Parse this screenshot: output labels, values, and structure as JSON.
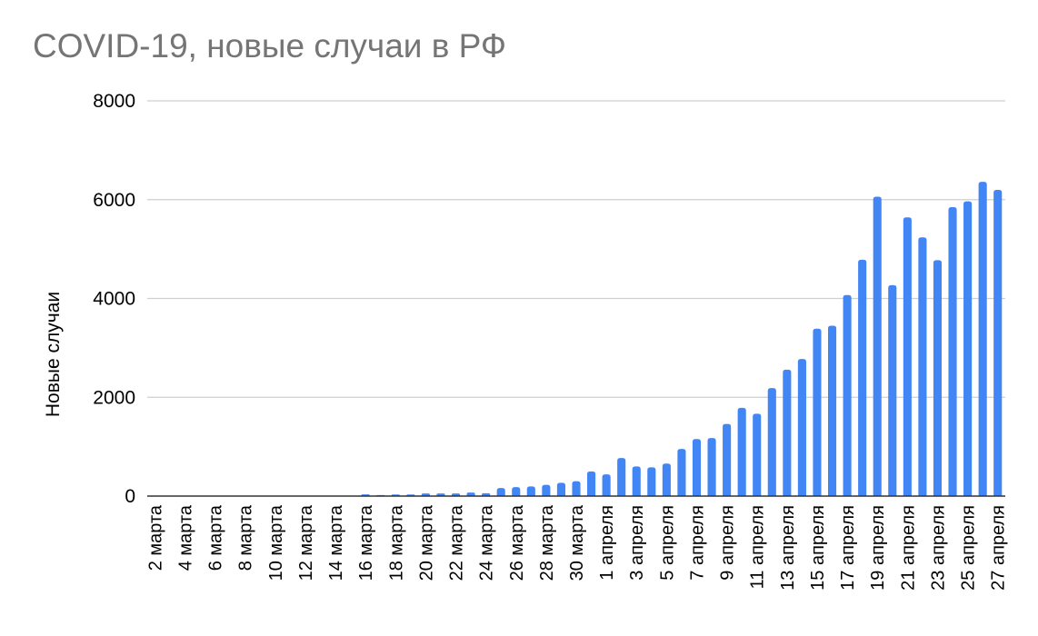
{
  "chart_data": {
    "type": "bar",
    "title": "COVID-19, новые случаи в РФ",
    "xlabel": "",
    "ylabel": "Новые случаи",
    "ylim": [
      0,
      8000
    ],
    "yticks": [
      0,
      2000,
      4000,
      6000,
      8000
    ],
    "grid": true,
    "legend": "none",
    "bar_color": "#4285F4",
    "categories": [
      "2 марта",
      "3 марта",
      "4 марта",
      "5 марта",
      "6 марта",
      "7 марта",
      "8 марта",
      "9 марта",
      "10 марта",
      "11 марта",
      "12 марта",
      "13 марта",
      "14 марта",
      "15 марта",
      "16 марта",
      "17 марта",
      "18 марта",
      "19 марта",
      "20 марта",
      "21 марта",
      "22 марта",
      "23 марта",
      "24 марта",
      "25 марта",
      "26 марта",
      "27 марта",
      "28 марта",
      "29 марта",
      "30 марта",
      "31 марта",
      "1 апреля",
      "2 апреля",
      "3 апреля",
      "4 апреля",
      "5 апреля",
      "6 апреля",
      "7 апреля",
      "8 апреля",
      "9 апреля",
      "10 апреля",
      "11 апреля",
      "12 апреля",
      "13 апреля",
      "14 апреля",
      "15 апреля",
      "16 апреля",
      "17 апреля",
      "18 апреля",
      "19 апреля",
      "20 апреля",
      "21 апреля",
      "22 апреля",
      "23 апреля",
      "24 апреля",
      "25 апреля",
      "26 апреля",
      "27 апреля"
    ],
    "tick_labels": [
      "2 марта",
      "4 марта",
      "6 марта",
      "8 марта",
      "10 марта",
      "12 марта",
      "14 марта",
      "16 марта",
      "18 марта",
      "20 марта",
      "22 марта",
      "24 марта",
      "26 марта",
      "28 марта",
      "30 марта",
      "1 апреля",
      "3 апреля",
      "5 апреля",
      "7 апреля",
      "9 апреля",
      "11 апреля",
      "13 апреля",
      "15 апреля",
      "17 апреля",
      "19 апреля",
      "21 апреля",
      "23 апреля",
      "25 апреля",
      "27 апреля"
    ],
    "values": [
      0,
      0,
      0,
      0,
      0,
      0,
      0,
      0,
      0,
      0,
      0,
      0,
      0,
      0,
      34,
      21,
      33,
      33,
      53,
      52,
      54,
      71,
      57,
      163,
      182,
      196,
      228,
      270,
      302,
      500,
      440,
      771,
      601,
      582,
      658,
      954,
      1154,
      1175,
      1459,
      1786,
      1667,
      2186,
      2558,
      2774,
      3388,
      3448,
      4070,
      4785,
      6060,
      4268,
      5642,
      5236,
      4774,
      5849,
      5966,
      6361,
      6198
    ]
  }
}
